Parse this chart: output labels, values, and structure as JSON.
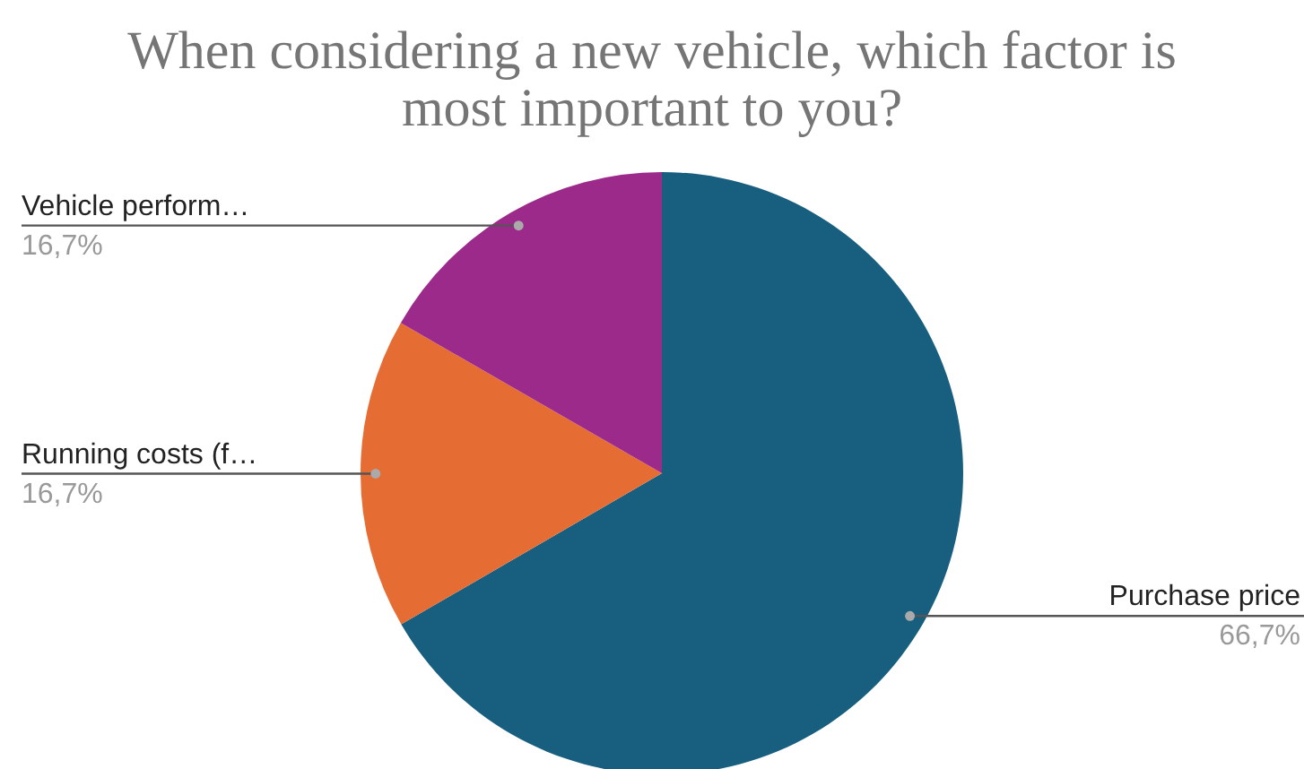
{
  "chart_data": {
    "type": "pie",
    "title": "When considering a new vehicle, which factor is most important to you?",
    "categories": [
      "Purchase price",
      "Running costs (f…",
      "Vehicle perform…"
    ],
    "values": [
      66.7,
      16.7,
      16.7
    ],
    "colors": [
      "#175e7f",
      "#e56d33",
      "#9c2a8b"
    ],
    "value_labels": [
      "66,7%",
      "16,7%",
      "16,7%"
    ]
  }
}
